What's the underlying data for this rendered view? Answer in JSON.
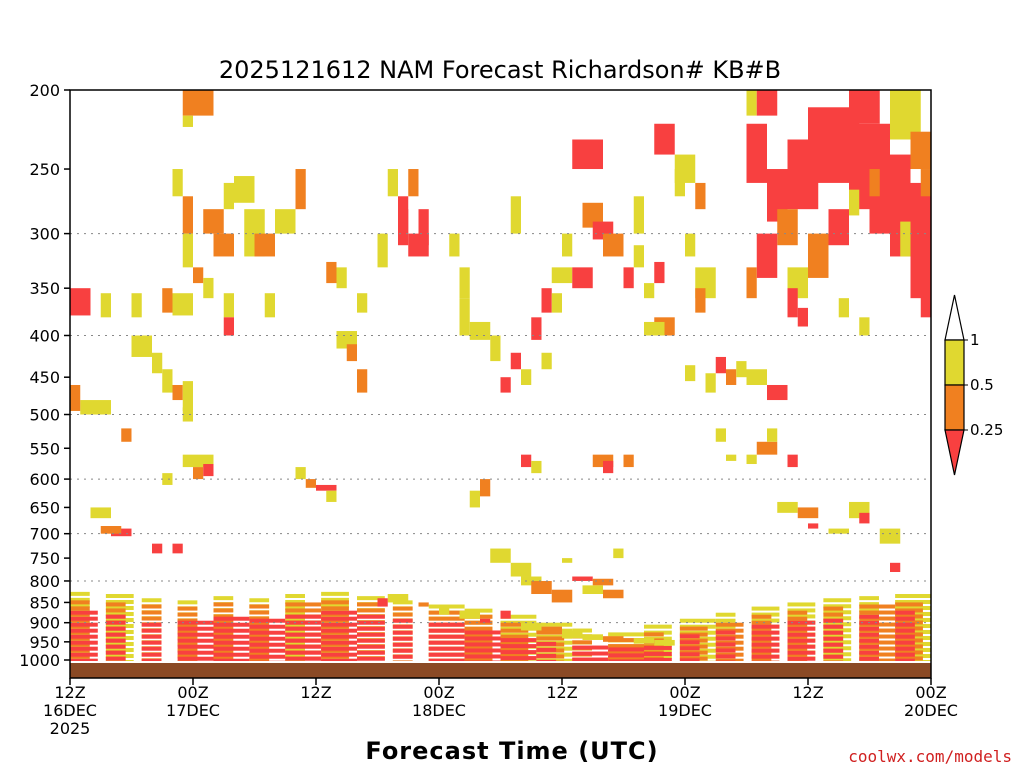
{
  "chart_data": {
    "type": "heatmap",
    "title": "2025121612 NAM Forecast Richardson# KB#B",
    "xlabel": "Forecast Time (UTC)",
    "ylabel": "",
    "credit": "coolwx.com/models",
    "x_unit": "forecast hour",
    "xlim": [
      0,
      84
    ],
    "y_unit": "hPa",
    "ylim": [
      1025,
      200
    ],
    "y_scale": "log",
    "y_ticks": [
      200,
      250,
      300,
      350,
      400,
      450,
      500,
      550,
      600,
      650,
      700,
      750,
      800,
      850,
      900,
      950,
      1000
    ],
    "y_gridlines": [
      300,
      400,
      500,
      600,
      700,
      800,
      900
    ],
    "x_ticks": [
      {
        "hour": 0,
        "line1": "12Z",
        "line2": "16DEC",
        "line3": "2025"
      },
      {
        "hour": 12,
        "line1": "00Z",
        "line2": "17DEC",
        "line3": ""
      },
      {
        "hour": 24,
        "line1": "12Z",
        "line2": "",
        "line3": ""
      },
      {
        "hour": 36,
        "line1": "00Z",
        "line2": "18DEC",
        "line3": ""
      },
      {
        "hour": 48,
        "line1": "12Z",
        "line2": "",
        "line3": ""
      },
      {
        "hour": 60,
        "line1": "00Z",
        "line2": "19DEC",
        "line3": ""
      },
      {
        "hour": 72,
        "line1": "12Z",
        "line2": "",
        "line3": ""
      },
      {
        "hour": 84,
        "line1": "00Z",
        "line2": "20DEC",
        "line3": ""
      }
    ],
    "colorbar": {
      "labels": [
        "1",
        "0.5",
        "0.25"
      ],
      "bins": [
        {
          "range": "> 1",
          "color": "#ffffff"
        },
        {
          "range": "0.5 – 1",
          "color": "#e0d830"
        },
        {
          "range": "0.25 – 0.5",
          "color": "#f08020"
        },
        {
          "range": "< 0.25",
          "color": "#f84040"
        }
      ]
    },
    "ground_color": "#8b4a25",
    "cell_width_hours": 1,
    "cells": [
      [
        11,
        12,
        200,
        215,
        "o"
      ],
      [
        11,
        12,
        215,
        222,
        "y"
      ],
      [
        12,
        14,
        200,
        215,
        "o"
      ],
      [
        10,
        11,
        250,
        270,
        "y"
      ],
      [
        11,
        12,
        270,
        300,
        "o"
      ],
      [
        11,
        12,
        300,
        330,
        "y"
      ],
      [
        12,
        13,
        330,
        345,
        "o"
      ],
      [
        13,
        15,
        280,
        300,
        "o"
      ],
      [
        14,
        16,
        300,
        320,
        "o"
      ],
      [
        15,
        16,
        260,
        280,
        "y"
      ],
      [
        16,
        18,
        255,
        275,
        "y"
      ],
      [
        17,
        19,
        280,
        320,
        "y"
      ],
      [
        18,
        20,
        300,
        320,
        "o"
      ],
      [
        20,
        22,
        280,
        300,
        "y"
      ],
      [
        22,
        23,
        250,
        280,
        "o"
      ],
      [
        0,
        2,
        350,
        378,
        "r"
      ],
      [
        3,
        4,
        355,
        380,
        "y"
      ],
      [
        6,
        7,
        355,
        380,
        "y"
      ],
      [
        9,
        10,
        350,
        375,
        "o"
      ],
      [
        10,
        12,
        355,
        378,
        "y"
      ],
      [
        13,
        14,
        340,
        360,
        "y"
      ],
      [
        15,
        16,
        355,
        380,
        "y"
      ],
      [
        19,
        20,
        355,
        380,
        "y"
      ],
      [
        15,
        16,
        380,
        400,
        "r"
      ],
      [
        6,
        8,
        400,
        425,
        "y"
      ],
      [
        8,
        9,
        420,
        445,
        "y"
      ],
      [
        9,
        10,
        440,
        470,
        "y"
      ],
      [
        10,
        11,
        460,
        480,
        "o"
      ],
      [
        11,
        12,
        455,
        495,
        "y"
      ],
      [
        1,
        4,
        480,
        500,
        "y"
      ],
      [
        0,
        1,
        460,
        495,
        "o"
      ],
      [
        11,
        12,
        490,
        510,
        "y"
      ],
      [
        5,
        6,
        520,
        540,
        "o"
      ],
      [
        11,
        14,
        560,
        580,
        "y"
      ],
      [
        12,
        13,
        580,
        600,
        "o"
      ],
      [
        13,
        14,
        575,
        595,
        "r"
      ],
      [
        9,
        10,
        590,
        610,
        "y"
      ],
      [
        2,
        4,
        650,
        670,
        "y"
      ],
      [
        4,
        6,
        690,
        705,
        "r"
      ],
      [
        3,
        5,
        685,
        700,
        "o"
      ],
      [
        8,
        9,
        720,
        740,
        "r"
      ],
      [
        10,
        11,
        720,
        740,
        "r"
      ],
      [
        24,
        26,
        610,
        620,
        "r"
      ],
      [
        23,
        24,
        600,
        615,
        "o"
      ],
      [
        22,
        23,
        580,
        600,
        "y"
      ],
      [
        25,
        26,
        620,
        640,
        "y"
      ],
      [
        25,
        26,
        325,
        345,
        "o"
      ],
      [
        26,
        27,
        330,
        350,
        "y"
      ],
      [
        28,
        29,
        355,
        375,
        "y"
      ],
      [
        26,
        28,
        395,
        415,
        "y"
      ],
      [
        27,
        28,
        410,
        430,
        "o"
      ],
      [
        28,
        29,
        440,
        470,
        "o"
      ],
      [
        31,
        32,
        250,
        270,
        "y"
      ],
      [
        32,
        33,
        270,
        300,
        "r"
      ],
      [
        30,
        31,
        300,
        330,
        "y"
      ],
      [
        32,
        33,
        280,
        310,
        "r"
      ],
      [
        33,
        35,
        300,
        320,
        "r"
      ],
      [
        33,
        34,
        250,
        270,
        "o"
      ],
      [
        34,
        35,
        280,
        310,
        "r"
      ],
      [
        37,
        38,
        300,
        320,
        "y"
      ],
      [
        38,
        39,
        330,
        360,
        "y"
      ],
      [
        39,
        41,
        385,
        405,
        "y"
      ],
      [
        38,
        39,
        360,
        400,
        "y"
      ],
      [
        43,
        44,
        420,
        440,
        "r"
      ],
      [
        42,
        43,
        450,
        470,
        "r"
      ],
      [
        41,
        42,
        400,
        430,
        "y"
      ],
      [
        44,
        45,
        440,
        460,
        "y"
      ],
      [
        45,
        46,
        380,
        405,
        "r"
      ],
      [
        46,
        47,
        420,
        440,
        "y"
      ],
      [
        43,
        44,
        270,
        300,
        "y"
      ],
      [
        47,
        49,
        330,
        345,
        "y"
      ],
      [
        46,
        47,
        350,
        375,
        "r"
      ],
      [
        47,
        48,
        355,
        375,
        "y"
      ],
      [
        48,
        49,
        300,
        320,
        "y"
      ],
      [
        49,
        51,
        330,
        350,
        "r"
      ],
      [
        49,
        52,
        230,
        250,
        "r"
      ],
      [
        50,
        52,
        275,
        295,
        "o"
      ],
      [
        51,
        53,
        290,
        305,
        "r"
      ],
      [
        52,
        54,
        300,
        320,
        "o"
      ],
      [
        54,
        55,
        330,
        350,
        "r"
      ],
      [
        55,
        56,
        310,
        330,
        "y"
      ],
      [
        56,
        57,
        345,
        360,
        "y"
      ],
      [
        57,
        59,
        380,
        400,
        "o"
      ],
      [
        56,
        58,
        385,
        400,
        "y"
      ],
      [
        55,
        56,
        270,
        300,
        "y"
      ],
      [
        57,
        58,
        325,
        345,
        "r"
      ],
      [
        59,
        60,
        250,
        270,
        "y"
      ],
      [
        60,
        61,
        300,
        320,
        "y"
      ],
      [
        61,
        63,
        330,
        360,
        "y"
      ],
      [
        61,
        62,
        350,
        375,
        "o"
      ],
      [
        63,
        64,
        425,
        445,
        "r"
      ],
      [
        64,
        65,
        440,
        460,
        "o"
      ],
      [
        65,
        66,
        430,
        450,
        "y"
      ],
      [
        60,
        61,
        435,
        455,
        "y"
      ],
      [
        62,
        63,
        445,
        470,
        "y"
      ],
      [
        57,
        59,
        220,
        240,
        "r"
      ],
      [
        59,
        61,
        240,
        260,
        "y"
      ],
      [
        61,
        62,
        260,
        280,
        "o"
      ],
      [
        66,
        68,
        220,
        260,
        "r"
      ],
      [
        68,
        70,
        250,
        290,
        "r"
      ],
      [
        70,
        73,
        230,
        280,
        "r"
      ],
      [
        72,
        77,
        210,
        260,
        "r"
      ],
      [
        76,
        80,
        220,
        280,
        "r"
      ],
      [
        78,
        82,
        240,
        300,
        "r"
      ],
      [
        80,
        84,
        260,
        320,
        "r"
      ],
      [
        82,
        84,
        290,
        360,
        "r"
      ],
      [
        83,
        84,
        330,
        380,
        "r"
      ],
      [
        74,
        76,
        280,
        310,
        "r"
      ],
      [
        72,
        74,
        300,
        340,
        "o"
      ],
      [
        70,
        72,
        330,
        360,
        "y"
      ],
      [
        69,
        71,
        280,
        310,
        "o"
      ],
      [
        67,
        69,
        300,
        340,
        "r"
      ],
      [
        66,
        67,
        330,
        360,
        "o"
      ],
      [
        70,
        71,
        350,
        380,
        "r"
      ],
      [
        71,
        72,
        370,
        390,
        "r"
      ],
      [
        75,
        76,
        360,
        380,
        "y"
      ],
      [
        77,
        78,
        380,
        400,
        "y"
      ],
      [
        66,
        67,
        200,
        215,
        "y"
      ],
      [
        67,
        69,
        200,
        215,
        "r"
      ],
      [
        76,
        79,
        200,
        220,
        "r"
      ],
      [
        80,
        83,
        200,
        230,
        "y"
      ],
      [
        78,
        79,
        250,
        270,
        "o"
      ],
      [
        83,
        84,
        250,
        270,
        "o"
      ],
      [
        82,
        84,
        225,
        250,
        "o"
      ],
      [
        76,
        77,
        265,
        285,
        "y"
      ],
      [
        81,
        82,
        290,
        320,
        "y"
      ],
      [
        68,
        70,
        460,
        480,
        "r"
      ],
      [
        66,
        68,
        440,
        460,
        "y"
      ],
      [
        63,
        64,
        520,
        540,
        "y"
      ],
      [
        64,
        65,
        560,
        570,
        "y"
      ],
      [
        66,
        67,
        560,
        575,
        "y"
      ],
      [
        67,
        69,
        540,
        560,
        "o"
      ],
      [
        68,
        69,
        520,
        540,
        "y"
      ],
      [
        70,
        71,
        560,
        580,
        "r"
      ],
      [
        69,
        71,
        640,
        660,
        "y"
      ],
      [
        71,
        73,
        650,
        670,
        "o"
      ],
      [
        72,
        73,
        680,
        690,
        "r"
      ],
      [
        74,
        76,
        690,
        700,
        "y"
      ],
      [
        76,
        78,
        640,
        670,
        "y"
      ],
      [
        77,
        78,
        660,
        680,
        "r"
      ],
      [
        79,
        81,
        690,
        720,
        "y"
      ],
      [
        80,
        81,
        760,
        780,
        "r"
      ],
      [
        54,
        55,
        560,
        580,
        "o"
      ],
      [
        51,
        53,
        560,
        580,
        "o"
      ],
      [
        52,
        53,
        570,
        590,
        "r"
      ],
      [
        44,
        45,
        560,
        580,
        "r"
      ],
      [
        45,
        46,
        570,
        590,
        "y"
      ],
      [
        40,
        41,
        600,
        630,
        "o"
      ],
      [
        39,
        40,
        620,
        650,
        "y"
      ],
      [
        41,
        43,
        730,
        760,
        "y"
      ],
      [
        43,
        45,
        760,
        790,
        "y"
      ],
      [
        44,
        46,
        790,
        810,
        "y"
      ],
      [
        45,
        47,
        800,
        830,
        "o"
      ],
      [
        47,
        49,
        820,
        850,
        "o"
      ],
      [
        49,
        51,
        790,
        800,
        "r"
      ],
      [
        51,
        53,
        795,
        810,
        "o"
      ],
      [
        52,
        54,
        820,
        840,
        "o"
      ],
      [
        50,
        52,
        810,
        830,
        "y"
      ],
      [
        48,
        49,
        750,
        760,
        "y"
      ],
      [
        53,
        54,
        730,
        750,
        "y"
      ],
      [
        31,
        33,
        830,
        850,
        "y"
      ],
      [
        30,
        31,
        840,
        860,
        "r"
      ],
      [
        34,
        35,
        850,
        860,
        "o"
      ],
      [
        36,
        37,
        860,
        880,
        "y"
      ],
      [
        38,
        40,
        870,
        890,
        "y"
      ],
      [
        40,
        41,
        890,
        900,
        "r"
      ],
      [
        42,
        43,
        870,
        890,
        "r"
      ],
      [
        44,
        46,
        900,
        920,
        "y"
      ],
      [
        46,
        48,
        910,
        930,
        "o"
      ],
      [
        48,
        50,
        920,
        940,
        "y"
      ],
      [
        50,
        52,
        930,
        945,
        "y"
      ],
      [
        52,
        54,
        935,
        950,
        "o"
      ],
      [
        55,
        57,
        940,
        955,
        "y"
      ],
      [
        57,
        59,
        945,
        960,
        "y"
      ]
    ],
    "near_surface_layers": [
      {
        "color": "r",
        "h0": 0,
        "h1": 84,
        "p_top_profile": [
          870,
          880,
          900,
          895,
          885,
          890,
          880,
          870,
          880,
          890,
          900,
          920,
          940,
          950,
          960,
          965,
          945,
          930,
          920,
          905,
          895,
          890,
          880,
          870
        ]
      },
      {
        "color": "o",
        "h0": 0,
        "h1": 84,
        "p_top_profile": [
          845,
          850,
          855,
          860,
          850,
          855,
          850,
          845,
          850,
          860,
          870,
          880,
          900,
          920,
          930,
          940,
          925,
          910,
          900,
          880,
          870,
          860,
          855,
          850
        ]
      },
      {
        "color": "y",
        "h0": 0,
        "h1": 84,
        "p_top_profile": [
          825,
          830,
          840,
          845,
          835,
          840,
          830,
          825,
          835,
          845,
          855,
          865,
          880,
          900,
          915,
          925,
          905,
          890,
          875,
          860,
          850,
          840,
          835,
          830
        ]
      }
    ]
  }
}
